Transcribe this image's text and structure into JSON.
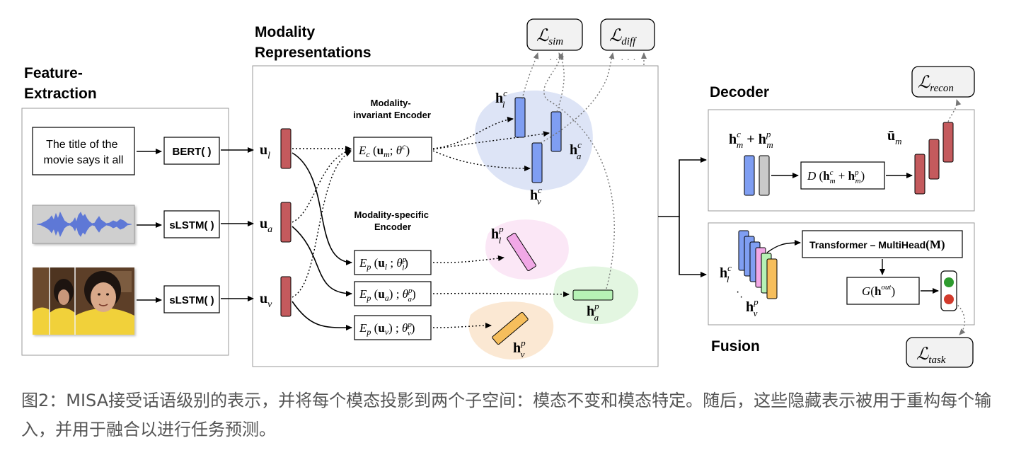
{
  "sections": {
    "feature_extraction": [
      "Feature-",
      "Extraction"
    ],
    "modality_representations": [
      "Modality",
      "Representations"
    ],
    "decoder": "Decoder",
    "fusion": "Fusion"
  },
  "feature_extraction": {
    "text_input": [
      "The title of the",
      "movie says it all"
    ],
    "bert": "BERT( )",
    "slstm_audio": "sLSTM( )",
    "slstm_video": "sLSTM( )"
  },
  "utterance_vectors": {
    "l": "u",
    "l_sub": "l",
    "a": "u",
    "a_sub": "a",
    "v": "u",
    "v_sub": "v"
  },
  "encoders": {
    "invariant_title": [
      "Modality-",
      "invariant Encoder"
    ],
    "specific_title": [
      "Modality-specific",
      "Encoder"
    ],
    "ec": {
      "name": "E",
      "sub": "c",
      "arg": "u",
      "arg_sub": "m",
      "param": "θ",
      "param_sup": "c"
    },
    "ep_l": {
      "name": "E",
      "sub": "p",
      "arg": "u",
      "arg_sub": "l",
      "param": "θ",
      "param_sup": "p",
      "param_sub": "l"
    },
    "ep_a": {
      "name": "E",
      "sub": "p",
      "arg": "u",
      "arg_sub": "a",
      "param": "θ",
      "param_sup": "p",
      "param_sub": "a"
    },
    "ep_v": {
      "name": "E",
      "sub": "p",
      "arg": "u",
      "arg_sub": "v",
      "param": "θ",
      "param_sup": "p",
      "param_sub": "v"
    }
  },
  "hidden": {
    "hlc": {
      "base": "h",
      "sup": "c",
      "sub": "l"
    },
    "hac": {
      "base": "h",
      "sup": "c",
      "sub": "a"
    },
    "hvc": {
      "base": "h",
      "sup": "c",
      "sub": "v"
    },
    "hlp": {
      "base": "h",
      "sup": "p",
      "sub": "l"
    },
    "hap": {
      "base": "h",
      "sup": "p",
      "sub": "a"
    },
    "hvp": {
      "base": "h",
      "sup": "p",
      "sub": "v"
    }
  },
  "losses": {
    "sim": {
      "symbol": "ℒ",
      "sub": "sim"
    },
    "diff": {
      "symbol": "ℒ",
      "sub": "diff"
    },
    "recon": {
      "symbol": "ℒ",
      "sub": "recon"
    },
    "task": {
      "symbol": "ℒ",
      "sub": "task"
    }
  },
  "decoder": {
    "sum_label": {
      "a": "h",
      "a_sup": "c",
      "a_sub": "m",
      "plus": "+",
      "b": "h",
      "b_sup": "p",
      "b_sub": "m"
    },
    "d_box": {
      "name": "D",
      "a": "h",
      "a_sup": "c",
      "a_sub": "m",
      "plus": "+",
      "b": "h",
      "b_sup": "p",
      "b_sub": "m"
    },
    "u_bar": {
      "base": "ū",
      "sub": "m"
    }
  },
  "fusion": {
    "transformer": {
      "text": "Transformer – MultiHead",
      "arg": "(M)"
    },
    "g_box": {
      "name": "G",
      "arg": "h",
      "arg_sup": "out"
    },
    "hlc": {
      "base": "h",
      "sup": "c",
      "sub": "l"
    },
    "dots": "·",
    "hvp": {
      "base": "h",
      "sup": "p",
      "sub": "v"
    }
  },
  "colors": {
    "red": "#c45a5d",
    "blue": "#7f9ef2",
    "gray": "#c9c9c9",
    "pink": "#f1a8e6",
    "green": "#b6f2b5",
    "orange": "#f6be5c",
    "blob_blue": "#dde4f6",
    "blob_pink": "#fbe7f6",
    "blob_green": "#e3f6e1",
    "blob_orange": "#fbe8d3",
    "light_green": "#2e9b2e",
    "light_red": "#d23a2c"
  },
  "icons": [
    "audio-waveform-icon",
    "video-frames-icon",
    "traffic-light-icon"
  ],
  "caption": "图2：MISA接受话语级别的表示，并将每个模态投影到两个子空间：模态不变和模态特定。随后，这些隐藏表示被用于重构每个输入，并用于融合以进行任务预测。"
}
